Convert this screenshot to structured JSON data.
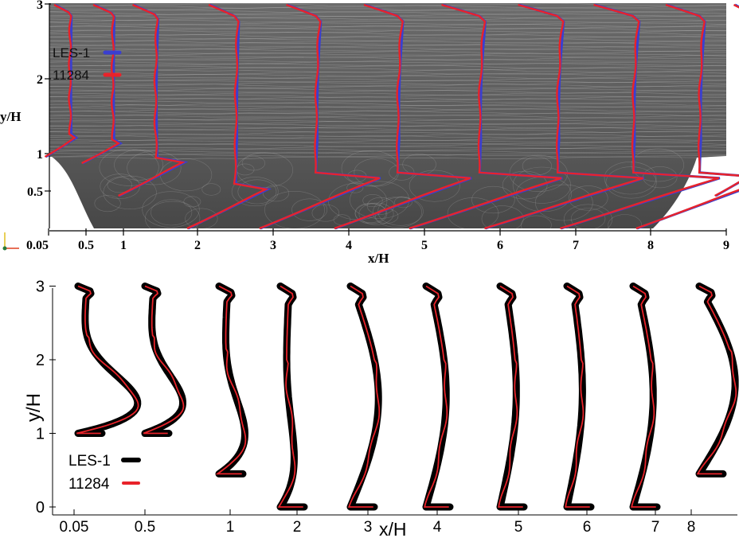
{
  "chart_data": [
    {
      "type": "line",
      "title": "",
      "background": "streamline visualization of flow (grey)",
      "xlabel": "x/H",
      "ylabel": "y/H",
      "x_ticks": [
        "0.05",
        "0.5",
        "1",
        "2",
        "3",
        "4",
        "5",
        "6",
        "7",
        "8",
        "9"
      ],
      "y_ticks": [
        "0.5",
        "1",
        "2",
        "3"
      ],
      "ylim": [
        0,
        3
      ],
      "legend": "top-left",
      "series": [
        {
          "name": "LES-1",
          "color": "#3a3fd0"
        },
        {
          "name": "11284",
          "color": "#e8232a"
        }
      ],
      "stations": [
        "0.05",
        "0.5",
        "1",
        "2",
        "3",
        "4",
        "5",
        "6",
        "7",
        "8",
        "9"
      ]
    },
    {
      "type": "line",
      "title": "",
      "xlabel": "x/H",
      "ylabel": "y/H",
      "x_ticks": [
        "0.05",
        "0.5",
        "1",
        "2",
        "3",
        "4",
        "5",
        "6",
        "7",
        "8"
      ],
      "y_ticks": [
        "0",
        "1",
        "2",
        "3"
      ],
      "ylim": [
        0,
        3
      ],
      "legend": "bottom-left",
      "series": [
        {
          "name": "LES-1",
          "color": "#000000"
        },
        {
          "name": "11284",
          "color": "#e8232a"
        }
      ],
      "stations": [
        "0.05",
        "0.5",
        "1",
        "2",
        "3",
        "4",
        "5",
        "6",
        "7",
        "8"
      ]
    }
  ]
}
